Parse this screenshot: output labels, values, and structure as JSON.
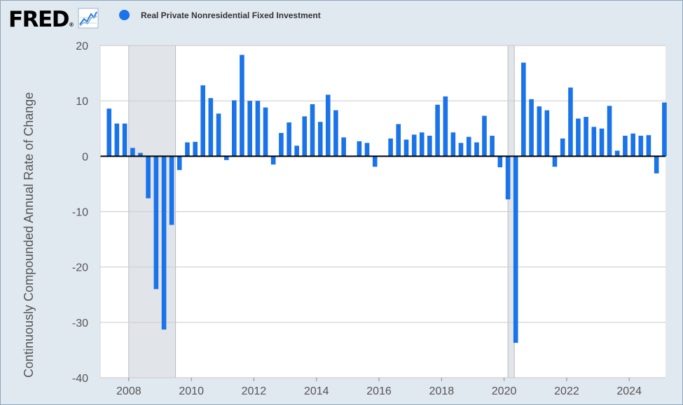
{
  "header": {
    "logo_text": "FRED",
    "logo_mark": "®",
    "logo_icon": "line-chart-icon"
  },
  "legend": {
    "label": "Real Private Nonresidential Fixed Investment",
    "color": "#1a73e8"
  },
  "colors": {
    "bar": "#1a73e8",
    "recession": "#e1e4e8",
    "grid": "#cfcfcf",
    "zero_line": "#000000",
    "plot_background": "#ffffff",
    "page_background": "#e1e9f0"
  },
  "chart_data": {
    "type": "bar",
    "title": "",
    "xlabel": "",
    "ylabel": "Continuously Compounded Annual Rate of Change",
    "series": [
      {
        "name": "Real Private Nonresidential Fixed Investment",
        "x": [
          "2007-04-01",
          "2007-07-01",
          "2007-10-01",
          "2008-01-01",
          "2008-04-01",
          "2008-07-01",
          "2008-10-01",
          "2009-01-01",
          "2009-04-01",
          "2009-07-01",
          "2009-10-01",
          "2010-01-01",
          "2010-04-01",
          "2010-07-01",
          "2010-10-01",
          "2011-01-01",
          "2011-04-01",
          "2011-07-01",
          "2011-10-01",
          "2012-01-01",
          "2012-04-01",
          "2012-07-01",
          "2012-10-01",
          "2013-01-01",
          "2013-04-01",
          "2013-07-01",
          "2013-10-01",
          "2014-01-01",
          "2014-04-01",
          "2014-07-01",
          "2014-10-01",
          "2015-01-01",
          "2015-04-01",
          "2015-07-01",
          "2015-10-01",
          "2016-01-01",
          "2016-04-01",
          "2016-07-01",
          "2016-10-01",
          "2017-01-01",
          "2017-04-01",
          "2017-07-01",
          "2017-10-01",
          "2018-01-01",
          "2018-04-01",
          "2018-07-01",
          "2018-10-01",
          "2019-01-01",
          "2019-04-01",
          "2019-07-01",
          "2019-10-01",
          "2020-01-01",
          "2020-04-01",
          "2020-07-01",
          "2020-10-01",
          "2021-01-01",
          "2021-04-01",
          "2021-07-01",
          "2021-10-01",
          "2022-01-01",
          "2022-04-01",
          "2022-07-01",
          "2022-10-01",
          "2023-01-01",
          "2023-04-01",
          "2023-07-01",
          "2023-10-01",
          "2024-01-01",
          "2024-04-01",
          "2024-07-01",
          "2024-10-01",
          "2025-01-01"
        ],
        "values": [
          8.6,
          5.9,
          5.9,
          1.5,
          0.6,
          -7.6,
          -24.0,
          -31.3,
          -12.4,
          -2.5,
          2.5,
          2.6,
          12.8,
          10.5,
          7.7,
          -0.7,
          10.1,
          18.3,
          10.0,
          10.0,
          8.8,
          -1.5,
          4.2,
          6.1,
          1.9,
          7.2,
          9.4,
          6.2,
          11.1,
          8.3,
          3.4,
          0.0,
          2.7,
          2.4,
          -1.9,
          0.1,
          3.2,
          5.8,
          3.0,
          3.9,
          4.3,
          3.7,
          9.3,
          10.8,
          4.3,
          2.4,
          3.5,
          2.5,
          7.3,
          3.7,
          -2.0,
          -7.8,
          -33.7,
          16.9,
          10.3,
          9.0,
          8.3,
          -1.9,
          3.2,
          12.4,
          6.8,
          7.1,
          5.3,
          5.0,
          9.1,
          1.0,
          3.7,
          4.1,
          3.7,
          3.8,
          -3.1,
          9.7
        ]
      }
    ],
    "ylim": [
      -40,
      20
    ],
    "yticks": [
      "20",
      "10",
      "0",
      "-10",
      "-20",
      "-30",
      "-40"
    ],
    "xticks": [
      "2008",
      "2010",
      "2012",
      "2014",
      "2016",
      "2018",
      "2020",
      "2022",
      "2024"
    ],
    "xlim": [
      "2007-02-01",
      "2025-02-28"
    ],
    "recessions": [
      {
        "start": "2008-01-01",
        "end": "2009-06-30"
      },
      {
        "start": "2020-02-15",
        "end": "2020-04-30"
      }
    ],
    "grid": true,
    "legend_position": "top-left"
  }
}
